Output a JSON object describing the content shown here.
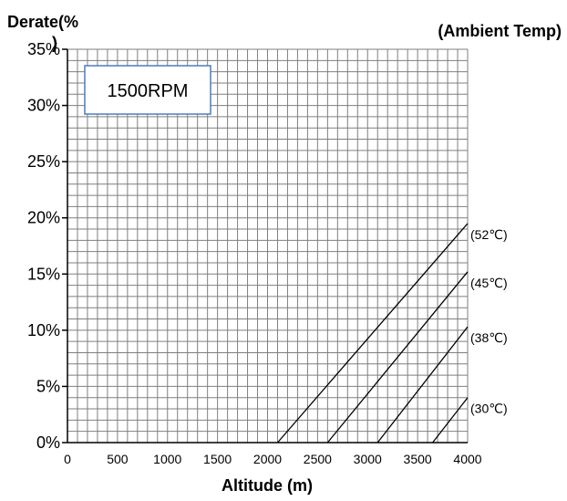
{
  "chart_data": {
    "type": "line",
    "title": "",
    "ylabel": "Derate(%)",
    "right_label": "(Ambient Temp)",
    "xlabel": "Altitude (m)",
    "annotation": "1500RPM",
    "xlim": [
      0,
      4000
    ],
    "ylim": [
      0,
      35
    ],
    "x_ticks": [
      "0",
      "500",
      "1000",
      "1500",
      "2000",
      "2500",
      "3000",
      "3500",
      "4000"
    ],
    "x_tick_values": [
      0,
      500,
      1000,
      1500,
      2000,
      2500,
      3000,
      3500,
      4000
    ],
    "y_ticks": [
      "0%",
      "5%",
      "10%",
      "15%",
      "20%",
      "25%",
      "30%",
      "35%"
    ],
    "y_tick_values": [
      0,
      5,
      10,
      15,
      20,
      25,
      30,
      35
    ],
    "grid": true,
    "series": [
      {
        "name": "(52℃)",
        "x": [
          2100,
          4000
        ],
        "y": [
          0,
          19.5
        ]
      },
      {
        "name": "(45℃)",
        "x": [
          2600,
          4000
        ],
        "y": [
          0,
          15.2
        ]
      },
      {
        "name": "(38℃)",
        "x": [
          3100,
          4000
        ],
        "y": [
          0,
          10.3
        ]
      },
      {
        "name": "(30℃)",
        "x": [
          3650,
          4000
        ],
        "y": [
          0,
          4.0
        ]
      }
    ],
    "colors": {
      "line": "#000000",
      "grid": "#7f7f7f",
      "annotation_border": "#4a7fbf"
    }
  }
}
